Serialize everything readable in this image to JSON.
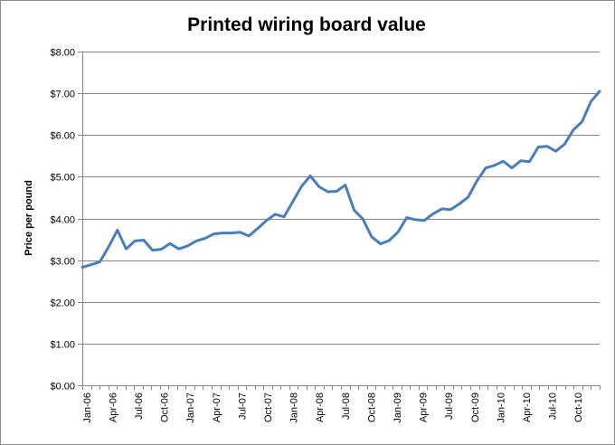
{
  "chart_data": {
    "type": "line",
    "title": "Printed wiring board value",
    "xlabel": "",
    "ylabel": "Price per pound",
    "ylim": [
      0,
      8
    ],
    "yticks": [
      "$0.00",
      "$1.00",
      "$2.00",
      "$3.00",
      "$4.00",
      "$5.00",
      "$6.00",
      "$7.00",
      "$8.00"
    ],
    "y_tick_values": [
      0,
      1,
      2,
      3,
      4,
      5,
      6,
      7,
      8
    ],
    "grid": "horizontal",
    "legend": "none",
    "x_tick_labels": [
      "Jan-06",
      "Apr-06",
      "Jul-06",
      "Oct-06",
      "Jan-07",
      "Apr-07",
      "Jul-07",
      "Oct-07",
      "Jan-08",
      "Apr-08",
      "Jul-08",
      "Oct-08",
      "Jan-09",
      "Apr-09",
      "Jul-09",
      "Oct-09",
      "Jan-10",
      "Apr-10",
      "Jul-10",
      "Oct-10"
    ],
    "line_color": "#4a7ebb",
    "series": [
      {
        "values": [
          2.83,
          2.89,
          2.96,
          3.32,
          3.72,
          3.27,
          3.46,
          3.48,
          3.24,
          3.26,
          3.4,
          3.27,
          3.34,
          3.46,
          3.52,
          3.63,
          3.65,
          3.65,
          3.67,
          3.58,
          3.76,
          3.95,
          4.1,
          4.04,
          4.4,
          4.77,
          5.02,
          4.76,
          4.64,
          4.65,
          4.8,
          4.2,
          3.99,
          3.56,
          3.39,
          3.47,
          3.67,
          4.02,
          3.97,
          3.95,
          4.11,
          4.23,
          4.21,
          4.35,
          4.51,
          4.9,
          5.21,
          5.27,
          5.37,
          5.21,
          5.38,
          5.36,
          5.71,
          5.73,
          5.61,
          5.78,
          6.12,
          6.32,
          6.8,
          7.05
        ]
      }
    ]
  }
}
